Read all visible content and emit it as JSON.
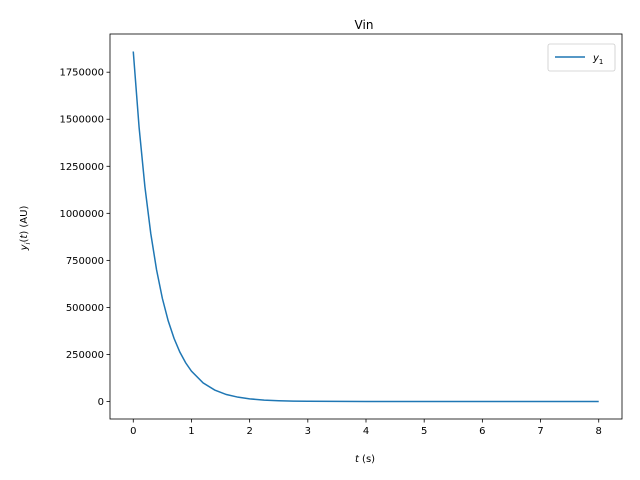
{
  "chart_data": {
    "type": "line",
    "title": "Vin",
    "xlabel": "t (s)",
    "ylabel": "y_i(t) (AU)",
    "xlim": [
      -0.4,
      8.4
    ],
    "ylim": [
      -93000,
      1953000
    ],
    "x_ticks": [
      0,
      1,
      2,
      3,
      4,
      5,
      6,
      7,
      8
    ],
    "x_tick_labels": [
      "0",
      "1",
      "2",
      "3",
      "4",
      "5",
      "6",
      "7",
      "8"
    ],
    "y_ticks": [
      0,
      250000,
      500000,
      750000,
      1000000,
      1250000,
      1500000,
      1750000
    ],
    "y_tick_labels": [
      "0",
      "250000",
      "500000",
      "750000",
      "1000000",
      "1250000",
      "1500000",
      "1750000"
    ],
    "grid": false,
    "legend_position": "top-right",
    "series": [
      {
        "name": "y1",
        "color": "#1f77b4",
        "x": [
          0,
          0.1,
          0.2,
          0.3,
          0.4,
          0.5,
          0.6,
          0.7,
          0.8,
          0.9,
          1.0,
          1.2,
          1.4,
          1.6,
          1.8,
          2.0,
          2.25,
          2.5,
          2.75,
          3.0,
          3.5,
          4.0,
          4.5,
          5.0,
          5.5,
          6.0,
          6.5,
          7.0,
          7.5,
          8.0
        ],
        "y": [
          1860000,
          1457000,
          1141000,
          894000,
          700000,
          548000,
          429000,
          336000,
          263000,
          206000,
          161000,
          99000,
          61000,
          37000,
          23000,
          14000,
          7600,
          4100,
          2200,
          1200,
          350,
          100,
          30,
          9,
          3,
          1,
          0,
          0,
          0,
          0
        ]
      }
    ]
  }
}
